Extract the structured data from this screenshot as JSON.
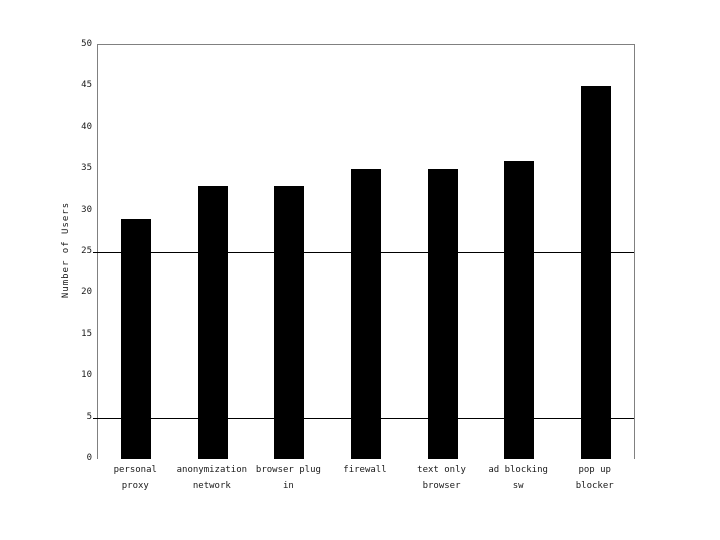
{
  "chart_data": {
    "type": "bar",
    "title": "",
    "xlabel": "",
    "ylabel": "Number of Users",
    "ylim": [
      0,
      50
    ],
    "yticks": [
      0,
      5,
      10,
      15,
      20,
      25,
      30,
      35,
      40,
      45,
      50
    ],
    "gridlines_at": [
      5,
      25
    ],
    "categories": [
      "personal\nproxy",
      "anonymization\nnetwork",
      "browser plug\nin",
      "firewall",
      "text only\nbrowser",
      "ad blocking\nsw",
      "pop up\nblocker"
    ],
    "values": [
      29,
      33,
      33,
      35,
      35,
      36,
      45
    ],
    "legend": "none",
    "grid": "partial-horizontal",
    "colors": {
      "bar": "#000000",
      "axis_border": "#808080",
      "gridline": "#000000",
      "text": "#1a1a1a",
      "background": "#ffffff"
    }
  }
}
